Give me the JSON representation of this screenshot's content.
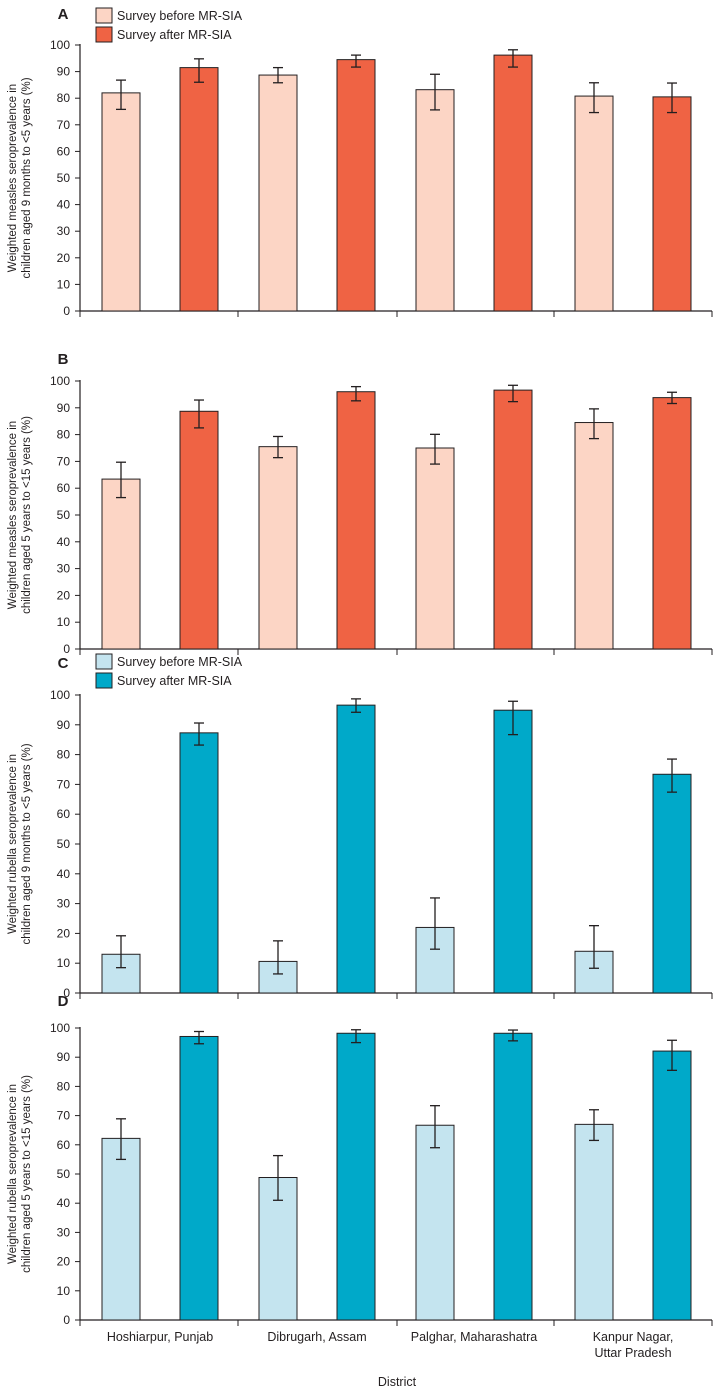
{
  "figure": {
    "xlabel": "District"
  },
  "colors": {
    "measles_before": "#fcd5c5",
    "measles_after": "#ef6344",
    "rubella_before": "#c4e4ef",
    "rubella_after": "#00a9c9",
    "axis": "#231f20"
  },
  "chart_data": [
    {
      "type": "bar",
      "panel": "A",
      "disease": "measles",
      "ylabel_lines": [
        "Weighted measles seroprevalence in",
        "children aged 9 months to <5 years (%)"
      ],
      "ylim": [
        0,
        100
      ],
      "yticks": [
        0,
        10,
        20,
        30,
        40,
        50,
        60,
        70,
        80,
        90,
        100
      ],
      "categories": [
        [
          "Hoshiarpur, Punjab"
        ],
        [
          "Dibrugarh, Assam"
        ],
        [
          "Palghar, Maharashatra"
        ],
        [
          "Kanpur Nagar,",
          "Uttar Pradesh"
        ]
      ],
      "legend": [
        "Survey before MR-SIA",
        "Survey after MR-SIA"
      ],
      "series": [
        {
          "name": "Survey before MR-SIA",
          "values": [
            82,
            88.7,
            83.2,
            80.8
          ],
          "ci_low": [
            75.8,
            85.8,
            75.6,
            74.6
          ],
          "ci_high": [
            86.8,
            91.5,
            89,
            85.8
          ]
        },
        {
          "name": "Survey after MR-SIA",
          "values": [
            91.5,
            94.5,
            96.2,
            80.5
          ],
          "ci_low": [
            86,
            91.7,
            91.7,
            74.6
          ],
          "ci_high": [
            94.8,
            96.2,
            98.2,
            85.7
          ]
        }
      ]
    },
    {
      "type": "bar",
      "panel": "B",
      "disease": "measles",
      "ylabel_lines": [
        "Weighted measles seroprevalence in",
        "children aged 5 years to <15 years (%)"
      ],
      "ylim": [
        0,
        100
      ],
      "yticks": [
        0,
        10,
        20,
        30,
        40,
        50,
        60,
        70,
        80,
        90,
        100
      ],
      "categories": [
        [
          "Hoshiarpur, Punjab"
        ],
        [
          "Dibrugarh, Assam"
        ],
        [
          "Palghar, Maharashatra"
        ],
        [
          "Kanpur Nagar,",
          "Uttar Pradesh"
        ]
      ],
      "legend": [],
      "series": [
        {
          "name": "Survey before MR-SIA",
          "values": [
            63.4,
            75.5,
            75,
            84.5
          ],
          "ci_low": [
            56.5,
            71.4,
            69,
            78.5
          ],
          "ci_high": [
            69.7,
            79.3,
            80.1,
            89.6
          ]
        },
        {
          "name": "Survey after MR-SIA",
          "values": [
            88.7,
            96,
            96.6,
            93.8
          ],
          "ci_low": [
            82.5,
            92.6,
            92.3,
            91.6
          ],
          "ci_high": [
            92.9,
            97.9,
            98.4,
            95.8
          ]
        }
      ]
    },
    {
      "type": "bar",
      "panel": "C",
      "disease": "rubella",
      "ylabel_lines": [
        "Weighted rubella seroprevalence in",
        "children aged 9 months to <5 years (%)"
      ],
      "ylim": [
        0,
        100
      ],
      "yticks": [
        0,
        10,
        20,
        30,
        40,
        50,
        60,
        70,
        80,
        90,
        100
      ],
      "categories": [
        [
          "Hoshiarpur, Punjab"
        ],
        [
          "Dibrugarh, Assam"
        ],
        [
          "Palghar, Maharashatra"
        ],
        [
          "Kanpur Nagar,",
          "Uttar Pradesh"
        ]
      ],
      "legend": [
        "Survey before MR-SIA",
        "Survey after MR-SIA"
      ],
      "series": [
        {
          "name": "Survey before MR-SIA",
          "values": [
            13,
            10.6,
            22,
            14
          ],
          "ci_low": [
            8.5,
            6.4,
            14.7,
            8.3
          ],
          "ci_high": [
            19.2,
            17.5,
            31.9,
            22.6
          ]
        },
        {
          "name": "Survey after MR-SIA",
          "values": [
            87.3,
            96.6,
            94.9,
            73.4
          ],
          "ci_low": [
            83.2,
            94.2,
            86.7,
            67.4
          ],
          "ci_high": [
            90.6,
            98.7,
            97.9,
            78.5
          ]
        }
      ]
    },
    {
      "type": "bar",
      "panel": "D",
      "disease": "rubella",
      "ylabel_lines": [
        "Weighted rubella seroprevalence in",
        "children aged 5 years to <15 years (%)"
      ],
      "ylim": [
        0,
        100
      ],
      "yticks": [
        0,
        10,
        20,
        30,
        40,
        50,
        60,
        70,
        80,
        90,
        100
      ],
      "categories": [
        [
          "Hoshiarpur, Punjab"
        ],
        [
          "Dibrugarh, Assam"
        ],
        [
          "Palghar, Maharashatra"
        ],
        [
          "Kanpur Nagar,",
          "Uttar Pradesh"
        ]
      ],
      "legend": [],
      "series": [
        {
          "name": "Survey before MR-SIA",
          "values": [
            62.2,
            48.8,
            66.7,
            67
          ],
          "ci_low": [
            55,
            41,
            59,
            61.5
          ],
          "ci_high": [
            68.9,
            56.3,
            73.4,
            72
          ]
        },
        {
          "name": "Survey after MR-SIA",
          "values": [
            97.1,
            98.2,
            98.2,
            92.1
          ],
          "ci_low": [
            94.6,
            95,
            95.6,
            85.5
          ],
          "ci_high": [
            98.8,
            99.4,
            99.3,
            95.8
          ]
        }
      ]
    }
  ]
}
